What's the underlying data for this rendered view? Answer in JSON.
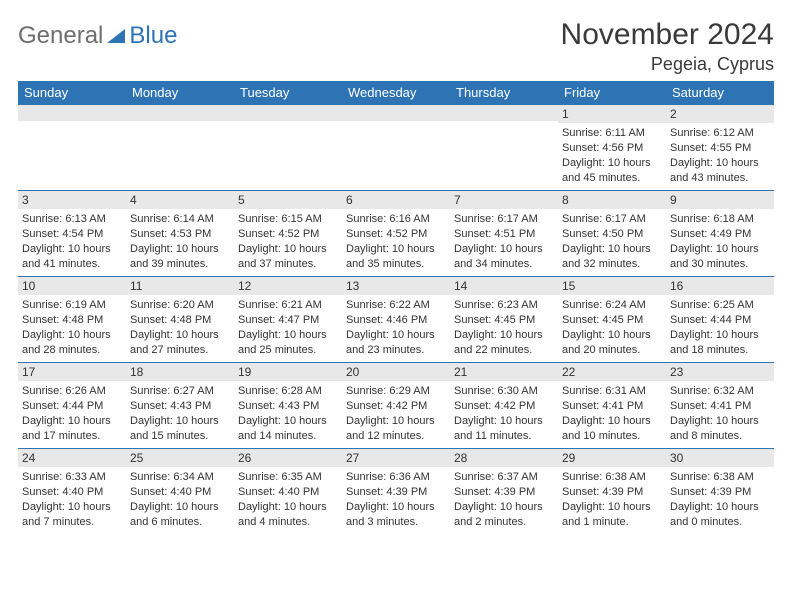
{
  "logo": {
    "general": "General",
    "blue": "Blue"
  },
  "title": "November 2024",
  "location": "Pegeia, Cyprus",
  "colors": {
    "header_bg": "#2e74b5",
    "header_fg": "#ffffff",
    "day_bar_bg": "#e8e8e8",
    "border": "#2e74b5",
    "text": "#333333",
    "logo_grey": "#6e6e6e",
    "logo_blue": "#2e74b5"
  },
  "typography": {
    "title_fontsize": 30,
    "location_fontsize": 18,
    "dayhead_fontsize": 13,
    "daynum_fontsize": 12,
    "body_fontsize": 11
  },
  "day_headers": [
    "Sunday",
    "Monday",
    "Tuesday",
    "Wednesday",
    "Thursday",
    "Friday",
    "Saturday"
  ],
  "weeks": [
    [
      {
        "n": "",
        "sr": "",
        "ss": "",
        "dl": ""
      },
      {
        "n": "",
        "sr": "",
        "ss": "",
        "dl": ""
      },
      {
        "n": "",
        "sr": "",
        "ss": "",
        "dl": ""
      },
      {
        "n": "",
        "sr": "",
        "ss": "",
        "dl": ""
      },
      {
        "n": "",
        "sr": "",
        "ss": "",
        "dl": ""
      },
      {
        "n": "1",
        "sr": "Sunrise: 6:11 AM",
        "ss": "Sunset: 4:56 PM",
        "dl": "Daylight: 10 hours and 45 minutes."
      },
      {
        "n": "2",
        "sr": "Sunrise: 6:12 AM",
        "ss": "Sunset: 4:55 PM",
        "dl": "Daylight: 10 hours and 43 minutes."
      }
    ],
    [
      {
        "n": "3",
        "sr": "Sunrise: 6:13 AM",
        "ss": "Sunset: 4:54 PM",
        "dl": "Daylight: 10 hours and 41 minutes."
      },
      {
        "n": "4",
        "sr": "Sunrise: 6:14 AM",
        "ss": "Sunset: 4:53 PM",
        "dl": "Daylight: 10 hours and 39 minutes."
      },
      {
        "n": "5",
        "sr": "Sunrise: 6:15 AM",
        "ss": "Sunset: 4:52 PM",
        "dl": "Daylight: 10 hours and 37 minutes."
      },
      {
        "n": "6",
        "sr": "Sunrise: 6:16 AM",
        "ss": "Sunset: 4:52 PM",
        "dl": "Daylight: 10 hours and 35 minutes."
      },
      {
        "n": "7",
        "sr": "Sunrise: 6:17 AM",
        "ss": "Sunset: 4:51 PM",
        "dl": "Daylight: 10 hours and 34 minutes."
      },
      {
        "n": "8",
        "sr": "Sunrise: 6:17 AM",
        "ss": "Sunset: 4:50 PM",
        "dl": "Daylight: 10 hours and 32 minutes."
      },
      {
        "n": "9",
        "sr": "Sunrise: 6:18 AM",
        "ss": "Sunset: 4:49 PM",
        "dl": "Daylight: 10 hours and 30 minutes."
      }
    ],
    [
      {
        "n": "10",
        "sr": "Sunrise: 6:19 AM",
        "ss": "Sunset: 4:48 PM",
        "dl": "Daylight: 10 hours and 28 minutes."
      },
      {
        "n": "11",
        "sr": "Sunrise: 6:20 AM",
        "ss": "Sunset: 4:48 PM",
        "dl": "Daylight: 10 hours and 27 minutes."
      },
      {
        "n": "12",
        "sr": "Sunrise: 6:21 AM",
        "ss": "Sunset: 4:47 PM",
        "dl": "Daylight: 10 hours and 25 minutes."
      },
      {
        "n": "13",
        "sr": "Sunrise: 6:22 AM",
        "ss": "Sunset: 4:46 PM",
        "dl": "Daylight: 10 hours and 23 minutes."
      },
      {
        "n": "14",
        "sr": "Sunrise: 6:23 AM",
        "ss": "Sunset: 4:45 PM",
        "dl": "Daylight: 10 hours and 22 minutes."
      },
      {
        "n": "15",
        "sr": "Sunrise: 6:24 AM",
        "ss": "Sunset: 4:45 PM",
        "dl": "Daylight: 10 hours and 20 minutes."
      },
      {
        "n": "16",
        "sr": "Sunrise: 6:25 AM",
        "ss": "Sunset: 4:44 PM",
        "dl": "Daylight: 10 hours and 18 minutes."
      }
    ],
    [
      {
        "n": "17",
        "sr": "Sunrise: 6:26 AM",
        "ss": "Sunset: 4:44 PM",
        "dl": "Daylight: 10 hours and 17 minutes."
      },
      {
        "n": "18",
        "sr": "Sunrise: 6:27 AM",
        "ss": "Sunset: 4:43 PM",
        "dl": "Daylight: 10 hours and 15 minutes."
      },
      {
        "n": "19",
        "sr": "Sunrise: 6:28 AM",
        "ss": "Sunset: 4:43 PM",
        "dl": "Daylight: 10 hours and 14 minutes."
      },
      {
        "n": "20",
        "sr": "Sunrise: 6:29 AM",
        "ss": "Sunset: 4:42 PM",
        "dl": "Daylight: 10 hours and 12 minutes."
      },
      {
        "n": "21",
        "sr": "Sunrise: 6:30 AM",
        "ss": "Sunset: 4:42 PM",
        "dl": "Daylight: 10 hours and 11 minutes."
      },
      {
        "n": "22",
        "sr": "Sunrise: 6:31 AM",
        "ss": "Sunset: 4:41 PM",
        "dl": "Daylight: 10 hours and 10 minutes."
      },
      {
        "n": "23",
        "sr": "Sunrise: 6:32 AM",
        "ss": "Sunset: 4:41 PM",
        "dl": "Daylight: 10 hours and 8 minutes."
      }
    ],
    [
      {
        "n": "24",
        "sr": "Sunrise: 6:33 AM",
        "ss": "Sunset: 4:40 PM",
        "dl": "Daylight: 10 hours and 7 minutes."
      },
      {
        "n": "25",
        "sr": "Sunrise: 6:34 AM",
        "ss": "Sunset: 4:40 PM",
        "dl": "Daylight: 10 hours and 6 minutes."
      },
      {
        "n": "26",
        "sr": "Sunrise: 6:35 AM",
        "ss": "Sunset: 4:40 PM",
        "dl": "Daylight: 10 hours and 4 minutes."
      },
      {
        "n": "27",
        "sr": "Sunrise: 6:36 AM",
        "ss": "Sunset: 4:39 PM",
        "dl": "Daylight: 10 hours and 3 minutes."
      },
      {
        "n": "28",
        "sr": "Sunrise: 6:37 AM",
        "ss": "Sunset: 4:39 PM",
        "dl": "Daylight: 10 hours and 2 minutes."
      },
      {
        "n": "29",
        "sr": "Sunrise: 6:38 AM",
        "ss": "Sunset: 4:39 PM",
        "dl": "Daylight: 10 hours and 1 minute."
      },
      {
        "n": "30",
        "sr": "Sunrise: 6:38 AM",
        "ss": "Sunset: 4:39 PM",
        "dl": "Daylight: 10 hours and 0 minutes."
      }
    ]
  ]
}
